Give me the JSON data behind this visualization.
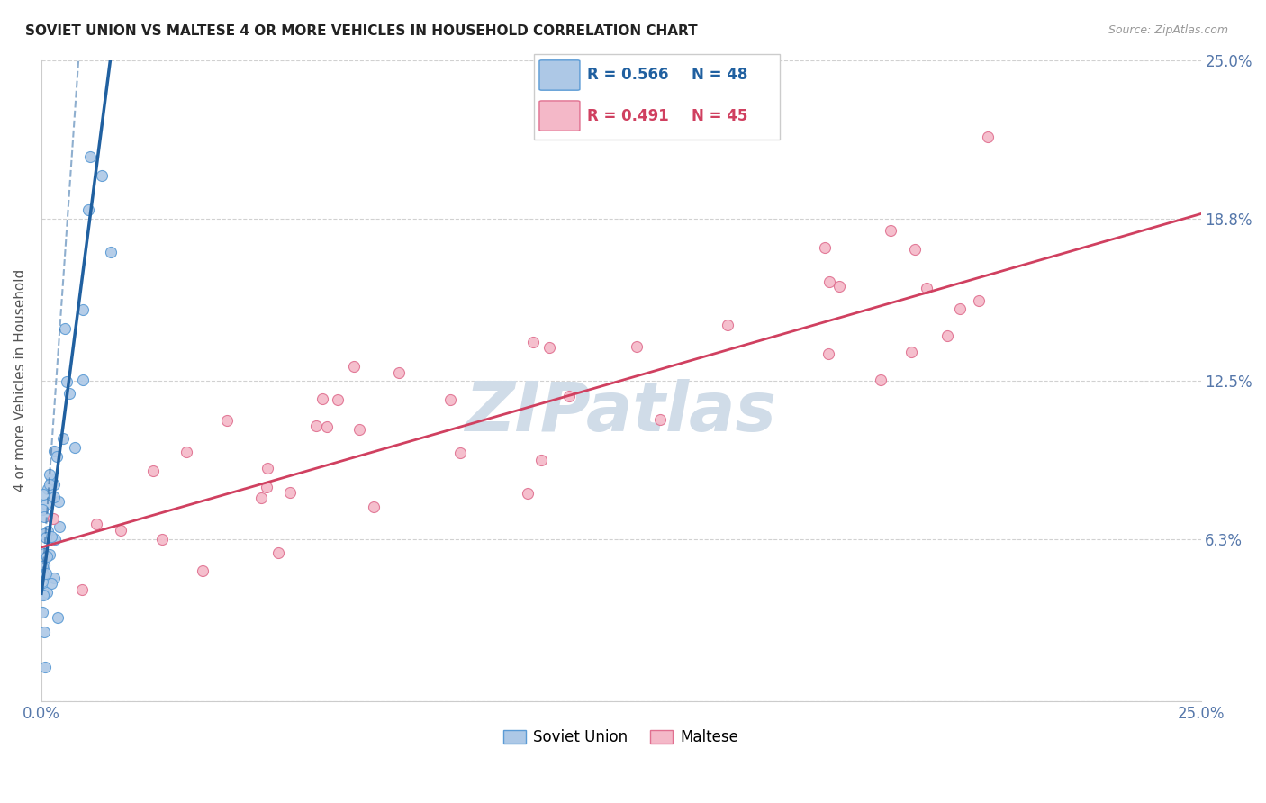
{
  "title": "SOVIET UNION VS MALTESE 4 OR MORE VEHICLES IN HOUSEHOLD CORRELATION CHART",
  "source": "Source: ZipAtlas.com",
  "ylabel": "4 or more Vehicles in Household",
  "xmin": 0.0,
  "xmax": 0.25,
  "ymin": 0.0,
  "ymax": 0.25,
  "soviet_color": "#adc8e6",
  "soviet_edge": "#5b9bd5",
  "maltese_color": "#f4b8c8",
  "maltese_edge": "#e07090",
  "soviet_R": 0.566,
  "soviet_N": 48,
  "maltese_R": 0.491,
  "maltese_N": 45,
  "soviet_line_color": "#2060a0",
  "maltese_line_color": "#d04060",
  "watermark": "ZIPatlas",
  "watermark_color": "#d0dce8",
  "tick_color": "#5577aa",
  "grid_color": "#cccccc",
  "title_color": "#222222",
  "source_color": "#999999",
  "ylabel_color": "#555555",
  "legend_border_color": "#cccccc",
  "bottom_legend_labels": [
    "Soviet Union",
    "Maltese"
  ]
}
